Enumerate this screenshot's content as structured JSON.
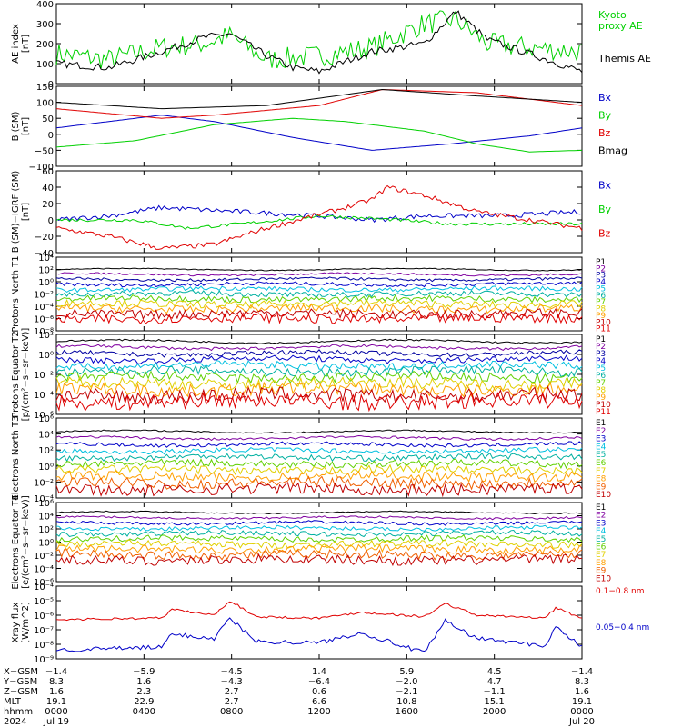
{
  "colors": {
    "black": "#000000",
    "red": "#e00000",
    "green": "#00d000",
    "blue": "#0000c8",
    "purple": "#8000a0",
    "magenta": "#c000c0",
    "navy": "#0000a0",
    "cyan": "#00c0e0",
    "teal": "#00b0a0",
    "lime": "#60d000",
    "yellow": "#e0d000",
    "orange": "#ffa000",
    "darkorange": "#f06000",
    "darkred": "#c00000"
  },
  "chart_data": [
    {
      "type": "line",
      "ylabel": "AE index [nT]",
      "ylim": [
        0,
        400
      ],
      "yticks": [
        "0",
        "100",
        "200",
        "300",
        "400"
      ],
      "series": [
        {
          "name": "Kyoto proxy AE",
          "color": "green",
          "keys": [
            [
              0,
              150
            ],
            [
              0.1,
              120
            ],
            [
              0.2,
              180
            ],
            [
              0.28,
              200
            ],
            [
              0.33,
              240
            ],
            [
              0.4,
              120
            ],
            [
              0.5,
              140
            ],
            [
              0.6,
              180
            ],
            [
              0.7,
              300
            ],
            [
              0.76,
              320
            ],
            [
              0.82,
              200
            ],
            [
              0.9,
              180
            ],
            [
              1,
              160
            ]
          ],
          "noise": 55
        },
        {
          "name": "Themis AE",
          "color": "black",
          "keys": [
            [
              0,
              100
            ],
            [
              0.1,
              80
            ],
            [
              0.2,
              160
            ],
            [
              0.28,
              230
            ],
            [
              0.33,
              250
            ],
            [
              0.4,
              140
            ],
            [
              0.45,
              80
            ],
            [
              0.5,
              60
            ],
            [
              0.6,
              160
            ],
            [
              0.7,
              200
            ],
            [
              0.76,
              360
            ],
            [
              0.82,
              220
            ],
            [
              0.9,
              150
            ],
            [
              1,
              60
            ]
          ],
          "noise": 18
        }
      ]
    },
    {
      "type": "line",
      "ylabel": "B (SM) [nT]",
      "ylim": [
        -100,
        150
      ],
      "yticks": [
        "−100",
        "−50",
        "0",
        "50",
        "100",
        "150"
      ],
      "series": [
        {
          "name": "Bx",
          "color": "blue",
          "keys": [
            [
              0,
              20
            ],
            [
              0.2,
              60
            ],
            [
              0.3,
              40
            ],
            [
              0.45,
              -10
            ],
            [
              0.6,
              -50
            ],
            [
              0.75,
              -30
            ],
            [
              0.9,
              -5
            ],
            [
              1,
              20
            ]
          ],
          "noise": 0
        },
        {
          "name": "By",
          "color": "green",
          "keys": [
            [
              0,
              -40
            ],
            [
              0.15,
              -20
            ],
            [
              0.3,
              30
            ],
            [
              0.45,
              50
            ],
            [
              0.55,
              40
            ],
            [
              0.7,
              10
            ],
            [
              0.8,
              -30
            ],
            [
              0.9,
              -55
            ],
            [
              1,
              -50
            ]
          ],
          "noise": 0
        },
        {
          "name": "Bz",
          "color": "red",
          "keys": [
            [
              0,
              80
            ],
            [
              0.2,
              50
            ],
            [
              0.3,
              60
            ],
            [
              0.5,
              90
            ],
            [
              0.62,
              140
            ],
            [
              0.8,
              130
            ],
            [
              1,
              90
            ]
          ],
          "noise": 0
        },
        {
          "name": "Bmag",
          "color": "black",
          "keys": [
            [
              0,
              100
            ],
            [
              0.2,
              80
            ],
            [
              0.4,
              90
            ],
            [
              0.62,
              140
            ],
            [
              0.8,
              120
            ],
            [
              1,
              100
            ]
          ],
          "noise": 0
        }
      ]
    },
    {
      "type": "line",
      "ylabel": "B (SM)−IGRF (SM) [nT]",
      "ylim": [
        -40,
        60
      ],
      "yticks": [
        "−40",
        "−20",
        "0",
        "20",
        "40",
        "60"
      ],
      "series": [
        {
          "name": "Bx",
          "color": "blue",
          "keys": [
            [
              0,
              0
            ],
            [
              0.1,
              5
            ],
            [
              0.2,
              15
            ],
            [
              0.35,
              10
            ],
            [
              0.5,
              5
            ],
            [
              0.6,
              0
            ],
            [
              0.7,
              5
            ],
            [
              0.85,
              5
            ],
            [
              1,
              10
            ]
          ],
          "noise": 3
        },
        {
          "name": "By",
          "color": "green",
          "keys": [
            [
              0,
              0
            ],
            [
              0.15,
              0
            ],
            [
              0.25,
              -10
            ],
            [
              0.35,
              -5
            ],
            [
              0.5,
              5
            ],
            [
              0.65,
              0
            ],
            [
              0.75,
              -5
            ],
            [
              1,
              -5
            ]
          ],
          "noise": 2
        },
        {
          "name": "Bz",
          "color": "red",
          "keys": [
            [
              0,
              -10
            ],
            [
              0.1,
              -20
            ],
            [
              0.2,
              -35
            ],
            [
              0.3,
              -30
            ],
            [
              0.4,
              -10
            ],
            [
              0.55,
              15
            ],
            [
              0.6,
              25
            ],
            [
              0.63,
              40
            ],
            [
              0.7,
              30
            ],
            [
              0.8,
              10
            ],
            [
              1,
              -10
            ]
          ],
          "noise": 3
        }
      ]
    },
    {
      "type": "line",
      "ylabel": "Protons North T1",
      "ylim": [
        -8,
        4
      ],
      "log": true,
      "yticks": [
        "10⁻⁸",
        "10⁻⁶",
        "10⁻⁴",
        "10⁻²",
        "10⁰",
        "10²",
        "10⁴"
      ],
      "channels": [
        "P1",
        "P2",
        "P3",
        "P4",
        "P5",
        "P6",
        "P7",
        "P8",
        "P9",
        "P10",
        "P11"
      ],
      "base": 2,
      "step": -0.8
    },
    {
      "type": "line",
      "ylabel": "Protons Equator T2 [p/(cm²−s−sr−keV)]",
      "ylim": [
        -6,
        2
      ],
      "log": true,
      "yticks": [
        "10⁻⁶",
        "10⁻⁴",
        "10⁻²",
        "10⁰",
        "10²"
      ],
      "channels": [
        "P1",
        "P2",
        "P3",
        "P4",
        "P5",
        "P6",
        "P7",
        "P8",
        "P9",
        "P10",
        "P11"
      ],
      "base": 1.3,
      "step": -0.6
    },
    {
      "type": "line",
      "ylabel": "Electrons North T3",
      "ylim": [
        -4,
        6
      ],
      "log": true,
      "yticks": [
        "10⁻⁴",
        "10⁻²",
        "10⁰",
        "10²",
        "10⁴",
        "10⁶"
      ],
      "channels": [
        "E1",
        "E2",
        "E3",
        "E4",
        "E5",
        "E6",
        "E7",
        "E8",
        "E9",
        "E10"
      ],
      "base": 4.3,
      "step": -0.8
    },
    {
      "type": "line",
      "ylabel": "Electrons Equator T4 [e/(cm²−s−sr−keV)]",
      "ylim": [
        -6,
        6
      ],
      "log": true,
      "yticks": [
        "10⁻⁶",
        "10⁻⁴",
        "10⁻²",
        "10⁰",
        "10²",
        "10⁴",
        "10⁶"
      ],
      "channels": [
        "E1",
        "E2",
        "E3",
        "E4",
        "E5",
        "E6",
        "E7",
        "E8",
        "E9",
        "E10"
      ],
      "base": 4.5,
      "step": -0.8
    },
    {
      "type": "line",
      "ylabel": "Xray flux [W/m^2]",
      "ylim": [
        -9,
        -4
      ],
      "log": true,
      "yticks": [
        "10⁻⁹",
        "10⁻⁸",
        "10⁻⁷",
        "10⁻⁶",
        "10⁻⁵",
        "10⁻⁴"
      ],
      "series": [
        {
          "name": "0.1−0.8 nm",
          "color": "red",
          "keys": [
            [
              0,
              -6.3
            ],
            [
              0.2,
              -6.2
            ],
            [
              0.22,
              -5.6
            ],
            [
              0.3,
              -6.0
            ],
            [
              0.33,
              -5.0
            ],
            [
              0.38,
              -6.1
            ],
            [
              0.5,
              -6.2
            ],
            [
              0.58,
              -5.8
            ],
            [
              0.7,
              -6.1
            ],
            [
              0.74,
              -5.2
            ],
            [
              0.8,
              -6.0
            ],
            [
              0.93,
              -6.2
            ],
            [
              0.95,
              -5.5
            ],
            [
              1,
              -6.2
            ]
          ],
          "noise": 0.08
        },
        {
          "name": "0.05−0.4 nm",
          "color": "blue",
          "keys": [
            [
              0,
              -8.4
            ],
            [
              0.2,
              -8.2
            ],
            [
              0.22,
              -7.3
            ],
            [
              0.3,
              -7.6
            ],
            [
              0.33,
              -6.2
            ],
            [
              0.38,
              -7.8
            ],
            [
              0.5,
              -7.9
            ],
            [
              0.58,
              -7.2
            ],
            [
              0.7,
              -8.6
            ],
            [
              0.74,
              -6.4
            ],
            [
              0.8,
              -7.6
            ],
            [
              0.93,
              -8.1
            ],
            [
              0.95,
              -6.8
            ],
            [
              1,
              -8.2
            ]
          ],
          "noise": 0.15
        }
      ]
    }
  ],
  "legends": [
    [
      {
        "text": "Kyoto",
        "color": "green"
      },
      {
        "text": "proxy AE",
        "color": "green"
      },
      {
        "text": "Themis AE",
        "color": "black"
      }
    ],
    [
      {
        "text": "Bx",
        "color": "blue"
      },
      {
        "text": "By",
        "color": "green"
      },
      {
        "text": "Bz",
        "color": "red"
      },
      {
        "text": "Bmag",
        "color": "black"
      }
    ],
    [
      {
        "text": "Bx",
        "color": "blue"
      },
      {
        "text": "By",
        "color": "green"
      },
      {
        "text": "Bz",
        "color": "red"
      }
    ],
    [
      {
        "text": "P1",
        "color": "black"
      },
      {
        "text": "P2",
        "color": "purple"
      },
      {
        "text": "P3",
        "color": "navy"
      },
      {
        "text": "P4",
        "color": "blue"
      },
      {
        "text": "P5",
        "color": "cyan"
      },
      {
        "text": "P6",
        "color": "teal"
      },
      {
        "text": "P7",
        "color": "lime"
      },
      {
        "text": "P8",
        "color": "yellow"
      },
      {
        "text": "P9",
        "color": "orange"
      },
      {
        "text": "P10",
        "color": "darkred"
      },
      {
        "text": "P11",
        "color": "red"
      }
    ],
    [
      {
        "text": "P1",
        "color": "black"
      },
      {
        "text": "P2",
        "color": "purple"
      },
      {
        "text": "P3",
        "color": "navy"
      },
      {
        "text": "P4",
        "color": "blue"
      },
      {
        "text": "P5",
        "color": "cyan"
      },
      {
        "text": "P6",
        "color": "teal"
      },
      {
        "text": "P7",
        "color": "lime"
      },
      {
        "text": "P8",
        "color": "yellow"
      },
      {
        "text": "P9",
        "color": "orange"
      },
      {
        "text": "P10",
        "color": "darkred"
      },
      {
        "text": "P11",
        "color": "red"
      }
    ],
    [
      {
        "text": "E1",
        "color": "black"
      },
      {
        "text": "E2",
        "color": "purple"
      },
      {
        "text": "E3",
        "color": "blue"
      },
      {
        "text": "E4",
        "color": "cyan"
      },
      {
        "text": "E5",
        "color": "teal"
      },
      {
        "text": "E6",
        "color": "lime"
      },
      {
        "text": "E7",
        "color": "yellow"
      },
      {
        "text": "E8",
        "color": "orange"
      },
      {
        "text": "E9",
        "color": "darkorange"
      },
      {
        "text": "E10",
        "color": "darkred"
      }
    ],
    [
      {
        "text": "E1",
        "color": "black"
      },
      {
        "text": "E2",
        "color": "purple"
      },
      {
        "text": "E3",
        "color": "blue"
      },
      {
        "text": "E4",
        "color": "cyan"
      },
      {
        "text": "E5",
        "color": "teal"
      },
      {
        "text": "E6",
        "color": "lime"
      },
      {
        "text": "E7",
        "color": "yellow"
      },
      {
        "text": "E8",
        "color": "orange"
      },
      {
        "text": "E9",
        "color": "darkorange"
      },
      {
        "text": "E10",
        "color": "darkred"
      }
    ],
    [
      {
        "text": "0.1−0.8 nm",
        "color": "red"
      },
      {
        "text": "0.05−0.4 nm",
        "color": "blue"
      }
    ]
  ],
  "ephemeris": {
    "labels": [
      "X−GSM",
      "Y−GSM",
      "Z−GSM",
      "MLT",
      "hhmm",
      "2024"
    ],
    "columns": [
      [
        "−1.4",
        "8.3",
        "1.6",
        "19.1",
        "0000",
        "Jul 19"
      ],
      [
        "−5.9",
        "1.6",
        "2.3",
        "22.9",
        "0400",
        ""
      ],
      [
        "−4.5",
        "−4.3",
        "2.7",
        "2.7",
        "0800",
        ""
      ],
      [
        "1.4",
        "−6.4",
        "0.6",
        "6.6",
        "1200",
        ""
      ],
      [
        "5.9",
        "−2.0",
        "−2.1",
        "10.8",
        "1600",
        ""
      ],
      [
        "4.5",
        "4.7",
        "−1.1",
        "15.1",
        "2000",
        ""
      ],
      [
        "−1.4",
        "8.3",
        "1.6",
        "19.1",
        "0000",
        "Jul 20"
      ]
    ]
  }
}
